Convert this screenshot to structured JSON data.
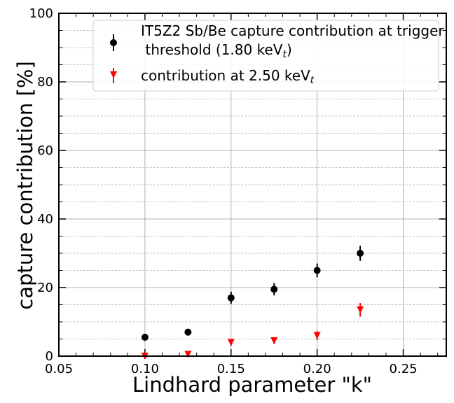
{
  "chart_data": {
    "type": "scatter",
    "xlabel": "Lindhard parameter \"k\"",
    "ylabel": "capture contribution [%]",
    "xlim": [
      0.05,
      0.275
    ],
    "ylim": [
      0,
      100
    ],
    "x_ticks": [
      "0.05",
      "0.10",
      "0.15",
      "0.20",
      "0.25"
    ],
    "y_ticks": [
      "0",
      "20",
      "40",
      "60",
      "80",
      "100"
    ],
    "grid": true,
    "legend_position": "top-right",
    "series": [
      {
        "name": "IT5Z2 Sb/Be capture contribution at trigger threshold (1.80 keVt)",
        "legend_line1": "IT5Z2 Sb/Be capture contribution at trigger",
        "legend_line2_pre": " threshold (1.80 keV",
        "legend_line2_sub": "t",
        "legend_line2_post": ")",
        "marker": "circle",
        "color": "#000000",
        "x": [
          0.1,
          0.125,
          0.15,
          0.175,
          0.2,
          0.225
        ],
        "y": [
          5.5,
          7.0,
          17.0,
          19.5,
          25.0,
          30.0
        ],
        "yerr": [
          1.0,
          1.0,
          1.8,
          1.8,
          2.0,
          2.2
        ]
      },
      {
        "name": "contribution at 2.50 keVt",
        "legend_line1_pre": "contribution at 2.50 keV",
        "legend_line1_sub": "t",
        "marker": "triangle-down",
        "color": "#ff0000",
        "x": [
          0.1,
          0.125,
          0.15,
          0.175,
          0.2,
          0.225
        ],
        "y": [
          0.0,
          0.5,
          4.0,
          4.5,
          6.0,
          13.5
        ],
        "yerr": [
          0.8,
          0.8,
          1.0,
          1.0,
          1.3,
          2.0
        ]
      }
    ]
  }
}
